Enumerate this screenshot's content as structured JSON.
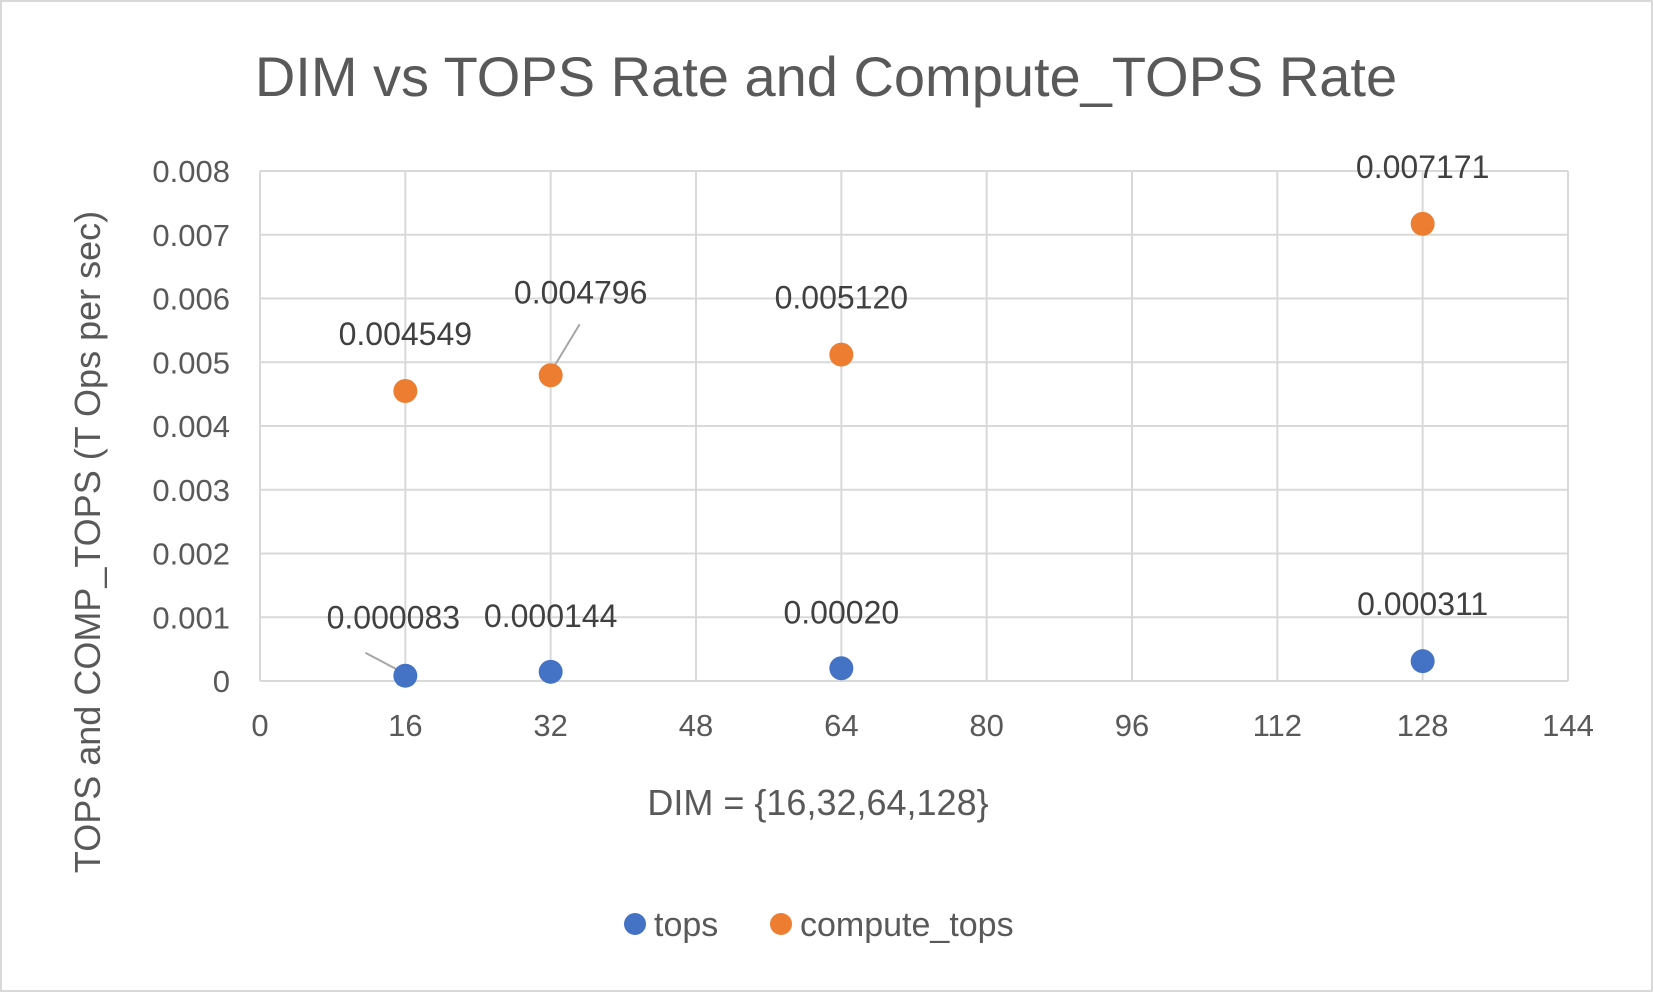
{
  "chart_data": {
    "type": "scatter",
    "title": "DIM vs TOPS Rate and Compute_TOPS Rate",
    "xlabel": "DIM = {16,32,64,128}",
    "ylabel": "TOPS and COMP_TOPS (T Ops per sec)",
    "xlim": [
      0,
      144
    ],
    "ylim": [
      0,
      0.008
    ],
    "x_ticks": [
      "0",
      "16",
      "32",
      "48",
      "64",
      "80",
      "96",
      "112",
      "128",
      "144"
    ],
    "y_ticks": [
      "0",
      "0.001",
      "0.002",
      "0.003",
      "0.004",
      "0.005",
      "0.006",
      "0.007",
      "0.008"
    ],
    "grid": true,
    "legend_position": "bottom",
    "series": [
      {
        "name": "tops",
        "color": "#4472c4",
        "x": [
          16,
          32,
          64,
          128
        ],
        "y": [
          8.3e-05,
          0.000144,
          0.0002,
          0.000311
        ],
        "labels": [
          "0.000083",
          "0.000144",
          "0.00020",
          "0.000311"
        ]
      },
      {
        "name": "compute_tops",
        "color": "#ed7d31",
        "x": [
          16,
          32,
          64,
          128
        ],
        "y": [
          0.004549,
          0.004796,
          0.00512,
          0.007171
        ],
        "labels": [
          "0.004549",
          "0.004796",
          "0.005120",
          "0.007171"
        ]
      }
    ]
  }
}
